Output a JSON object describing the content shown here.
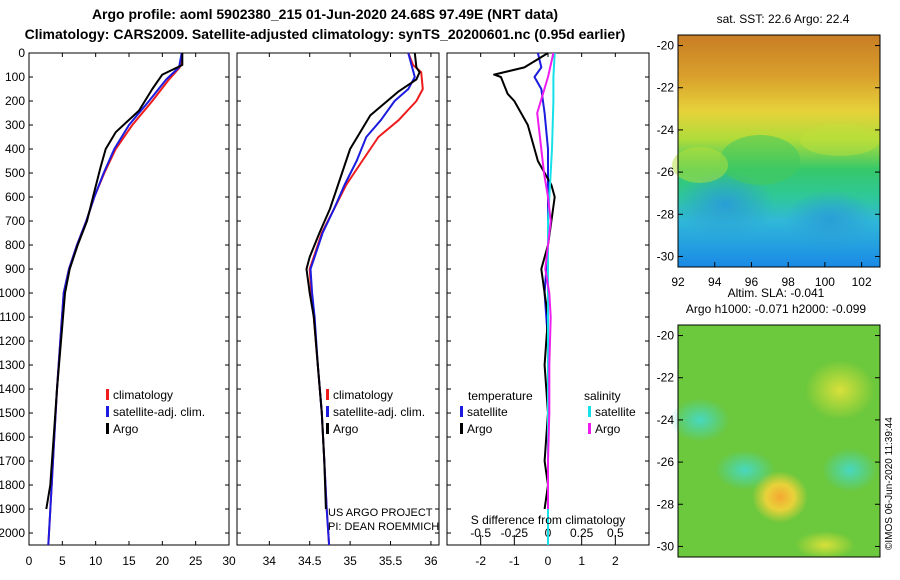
{
  "header": {
    "title_line1": "Argo profile: aoml 5902380_215 01-Jun-2020 24.68S 97.49E (NRT data)",
    "title_line2": "Climatology: CARS2009. Satellite-adjusted climatology: synTS_20200601.nc (0.95d earlier)"
  },
  "colors": {
    "climatology": "#ee1c1c",
    "satellite": "#1c1ce0",
    "argo": "#000000",
    "sat_salinity": "#16e0e8",
    "argo_salinity": "#ee1cee"
  },
  "chart_data": [
    {
      "type": "line",
      "name": "temperature-profile",
      "xlim": [
        0,
        30
      ],
      "ylim": [
        2050,
        0
      ],
      "x_ticks": [
        0,
        5,
        10,
        15,
        20,
        25,
        30
      ],
      "y_ticks": [
        0,
        100,
        200,
        300,
        400,
        500,
        600,
        700,
        800,
        900,
        1000,
        1100,
        1200,
        1300,
        1400,
        1500,
        1600,
        1700,
        1800,
        1900,
        2000
      ],
      "legend": [
        "climatology",
        "satellite-adj. clim.",
        "Argo"
      ],
      "series": [
        {
          "name": "climatology",
          "points": [
            [
              23,
              0
            ],
            [
              22.6,
              60
            ],
            [
              21,
              110
            ],
            [
              18.5,
              200
            ],
            [
              15.5,
              300
            ],
            [
              13,
              400
            ],
            [
              11.3,
              500
            ],
            [
              9.8,
              600
            ],
            [
              8.6,
              700
            ],
            [
              7.2,
              800
            ],
            [
              6,
              900
            ],
            [
              5.2,
              1000
            ],
            [
              4.7,
              1200
            ],
            [
              4.2,
              1400
            ],
            [
              3.8,
              1600
            ],
            [
              3.4,
              1800
            ],
            [
              3.0,
              2000
            ],
            [
              2.9,
              2050
            ]
          ]
        },
        {
          "name": "satellite-adj. clim.",
          "points": [
            [
              22.9,
              0
            ],
            [
              22.5,
              60
            ],
            [
              20.6,
              110
            ],
            [
              18,
              200
            ],
            [
              15,
              300
            ],
            [
              12.8,
              400
            ],
            [
              11.2,
              500
            ],
            [
              9.8,
              600
            ],
            [
              8.6,
              700
            ],
            [
              7.2,
              800
            ],
            [
              6,
              900
            ],
            [
              5.2,
              1000
            ],
            [
              4.7,
              1200
            ],
            [
              4.2,
              1400
            ],
            [
              3.8,
              1600
            ],
            [
              3.4,
              1800
            ],
            [
              3.0,
              2000
            ],
            [
              2.9,
              2050
            ]
          ]
        },
        {
          "name": "Argo",
          "points": [
            [
              23,
              0
            ],
            [
              23,
              50
            ],
            [
              20,
              90
            ],
            [
              18.5,
              150
            ],
            [
              16.5,
              240
            ],
            [
              13,
              330
            ],
            [
              11.5,
              400
            ],
            [
              10.7,
              480
            ],
            [
              9.6,
              600
            ],
            [
              8.7,
              700
            ],
            [
              7.3,
              800
            ],
            [
              6.1,
              900
            ],
            [
              5.4,
              1000
            ],
            [
              4.8,
              1200
            ],
            [
              4.2,
              1400
            ],
            [
              3.7,
              1600
            ],
            [
              3.2,
              1800
            ],
            [
              2.6,
              1900
            ]
          ]
        }
      ]
    },
    {
      "type": "line",
      "name": "salinity-profile",
      "xlim": [
        33.6,
        36.1
      ],
      "ylim": [
        2050,
        0
      ],
      "x_ticks": [
        34,
        34.5,
        35,
        35.5,
        36
      ],
      "x_tick_labels": [
        "34",
        "34.5",
        "35",
        "35.5",
        "36"
      ],
      "legend": [
        "climatology",
        "satellite-adj. clim.",
        "Argo"
      ],
      "series": [
        {
          "name": "climatology",
          "points": [
            [
              35.72,
              0
            ],
            [
              35.78,
              50
            ],
            [
              35.88,
              80
            ],
            [
              35.9,
              150
            ],
            [
              35.82,
              200
            ],
            [
              35.6,
              280
            ],
            [
              35.35,
              350
            ],
            [
              35.15,
              450
            ],
            [
              34.95,
              550
            ],
            [
              34.8,
              650
            ],
            [
              34.65,
              750
            ],
            [
              34.55,
              850
            ],
            [
              34.5,
              900
            ],
            [
              34.52,
              1000
            ],
            [
              34.55,
              1100
            ],
            [
              34.6,
              1300
            ],
            [
              34.65,
              1500
            ],
            [
              34.68,
              1700
            ],
            [
              34.71,
              1900
            ],
            [
              34.73,
              2000
            ],
            [
              34.74,
              2050
            ]
          ]
        },
        {
          "name": "satellite-adj. clim.",
          "points": [
            [
              35.72,
              0
            ],
            [
              35.76,
              50
            ],
            [
              35.8,
              100
            ],
            [
              35.72,
              150
            ],
            [
              35.55,
              200
            ],
            [
              35.38,
              280
            ],
            [
              35.2,
              350
            ],
            [
              35.08,
              450
            ],
            [
              34.93,
              550
            ],
            [
              34.8,
              650
            ],
            [
              34.66,
              750
            ],
            [
              34.56,
              850
            ],
            [
              34.51,
              900
            ],
            [
              34.53,
              1000
            ],
            [
              34.56,
              1100
            ],
            [
              34.6,
              1300
            ],
            [
              34.65,
              1500
            ],
            [
              34.68,
              1700
            ],
            [
              34.71,
              1900
            ],
            [
              34.73,
              2000
            ],
            [
              34.74,
              2050
            ]
          ]
        },
        {
          "name": "Argo",
          "points": [
            [
              35.8,
              0
            ],
            [
              35.82,
              60
            ],
            [
              35.86,
              80
            ],
            [
              35.82,
              110
            ],
            [
              35.6,
              160
            ],
            [
              35.25,
              260
            ],
            [
              35.0,
              400
            ],
            [
              34.85,
              550
            ],
            [
              34.75,
              650
            ],
            [
              34.62,
              750
            ],
            [
              34.5,
              850
            ],
            [
              34.46,
              900
            ],
            [
              34.5,
              1000
            ],
            [
              34.55,
              1100
            ],
            [
              34.6,
              1300
            ],
            [
              34.65,
              1500
            ],
            [
              34.68,
              1700
            ],
            [
              34.7,
              1900
            ]
          ]
        }
      ]
    },
    {
      "type": "line",
      "name": "difference-profile",
      "xlim": [
        -3,
        3
      ],
      "ylim": [
        2050,
        0
      ],
      "x_ticks": [
        -2,
        -1,
        0,
        1,
        2
      ],
      "x_tick_labels": [
        "-2",
        "-1",
        "0",
        "1",
        "2"
      ],
      "upper_axis_ticks": [
        -0.5,
        -0.25,
        0,
        0.25,
        0.5
      ],
      "upper_axis_tick_labels": [
        "-0.5",
        "-0.25",
        "0",
        "0.25",
        "0.5"
      ],
      "upper_axis_label": "S difference from climatology",
      "legend_temperature_heading": "temperature",
      "legend_salinity_heading": "salinity",
      "legend_entries": [
        "satellite",
        "Argo"
      ],
      "series": [
        {
          "name": "temperature satellite",
          "points": [
            [
              -0.3,
              0
            ],
            [
              -0.2,
              60
            ],
            [
              -0.4,
              100
            ],
            [
              -0.2,
              150
            ],
            [
              -0.1,
              250
            ],
            [
              0,
              400
            ],
            [
              0,
              600
            ],
            [
              0,
              800
            ],
            [
              -0.1,
              1000
            ],
            [
              0,
              1200
            ],
            [
              0,
              1500
            ],
            [
              0,
              1800
            ],
            [
              0,
              2050
            ]
          ]
        },
        {
          "name": "temperature Argo",
          "points": [
            [
              0,
              0
            ],
            [
              -0.7,
              60
            ],
            [
              -1.6,
              90
            ],
            [
              -1.4,
              100
            ],
            [
              -1.2,
              170
            ],
            [
              -1.0,
              200
            ],
            [
              -0.6,
              300
            ],
            [
              -0.3,
              450
            ],
            [
              0.1,
              550
            ],
            [
              0.2,
              600
            ],
            [
              0.1,
              700
            ],
            [
              0,
              800
            ],
            [
              -0.2,
              900
            ],
            [
              -0.1,
              1000
            ],
            [
              0,
              1100
            ],
            [
              -0.1,
              1300
            ],
            [
              0,
              1500
            ],
            [
              -0.1,
              1700
            ],
            [
              0,
              1800
            ],
            [
              -0.1,
              1900
            ]
          ]
        },
        {
          "name": "salinity satellite",
          "points": [
            [
              0.05,
              0
            ],
            [
              0.04,
              100
            ],
            [
              0.04,
              200
            ],
            [
              0.03,
              400
            ],
            [
              0,
              700
            ],
            [
              0,
              900
            ],
            [
              0,
              1100
            ],
            [
              0,
              1500
            ],
            [
              0,
              2050
            ]
          ]
        },
        {
          "name": "salinity Argo",
          "points": [
            [
              0.04,
              0
            ],
            [
              0.02,
              50
            ],
            [
              0,
              100
            ],
            [
              -0.08,
              250
            ],
            [
              -0.05,
              400
            ],
            [
              -0.03,
              500
            ],
            [
              0,
              600
            ],
            [
              0.02,
              700
            ],
            [
              0,
              800
            ],
            [
              -0.02,
              900
            ],
            [
              0.01,
              1000
            ],
            [
              0.02,
              1100
            ],
            [
              0.01,
              1300
            ],
            [
              0.01,
              1500
            ],
            [
              0,
              1700
            ],
            [
              0,
              1900
            ]
          ]
        }
      ]
    },
    {
      "type": "heatmap",
      "name": "sst-map",
      "title": "sat. SST: 22.6 Argo: 22.4",
      "xlim": [
        92,
        103
      ],
      "ylim": [
        -30.5,
        -19.5
      ],
      "x_ticks": [
        92,
        94,
        96,
        98,
        100,
        102
      ],
      "y_ticks": [
        -20,
        -22,
        -24,
        -26,
        -28,
        -30
      ]
    },
    {
      "type": "heatmap",
      "name": "sla-map",
      "title_line1": "Altim. SLA: -0.041",
      "title_line2": "Argo h1000: -0.071 h2000: -0.099",
      "ylim": [
        -30.5,
        -19.5
      ],
      "y_ticks": [
        -20,
        -22,
        -24,
        -26,
        -28,
        -30
      ]
    }
  ],
  "annotations": {
    "project_line1": "US ARGO PROJECT",
    "project_line2": "PI: DEAN ROEMMICH",
    "imos_stamp": "©IMOS 06-Jun-2020 11:39:44"
  }
}
